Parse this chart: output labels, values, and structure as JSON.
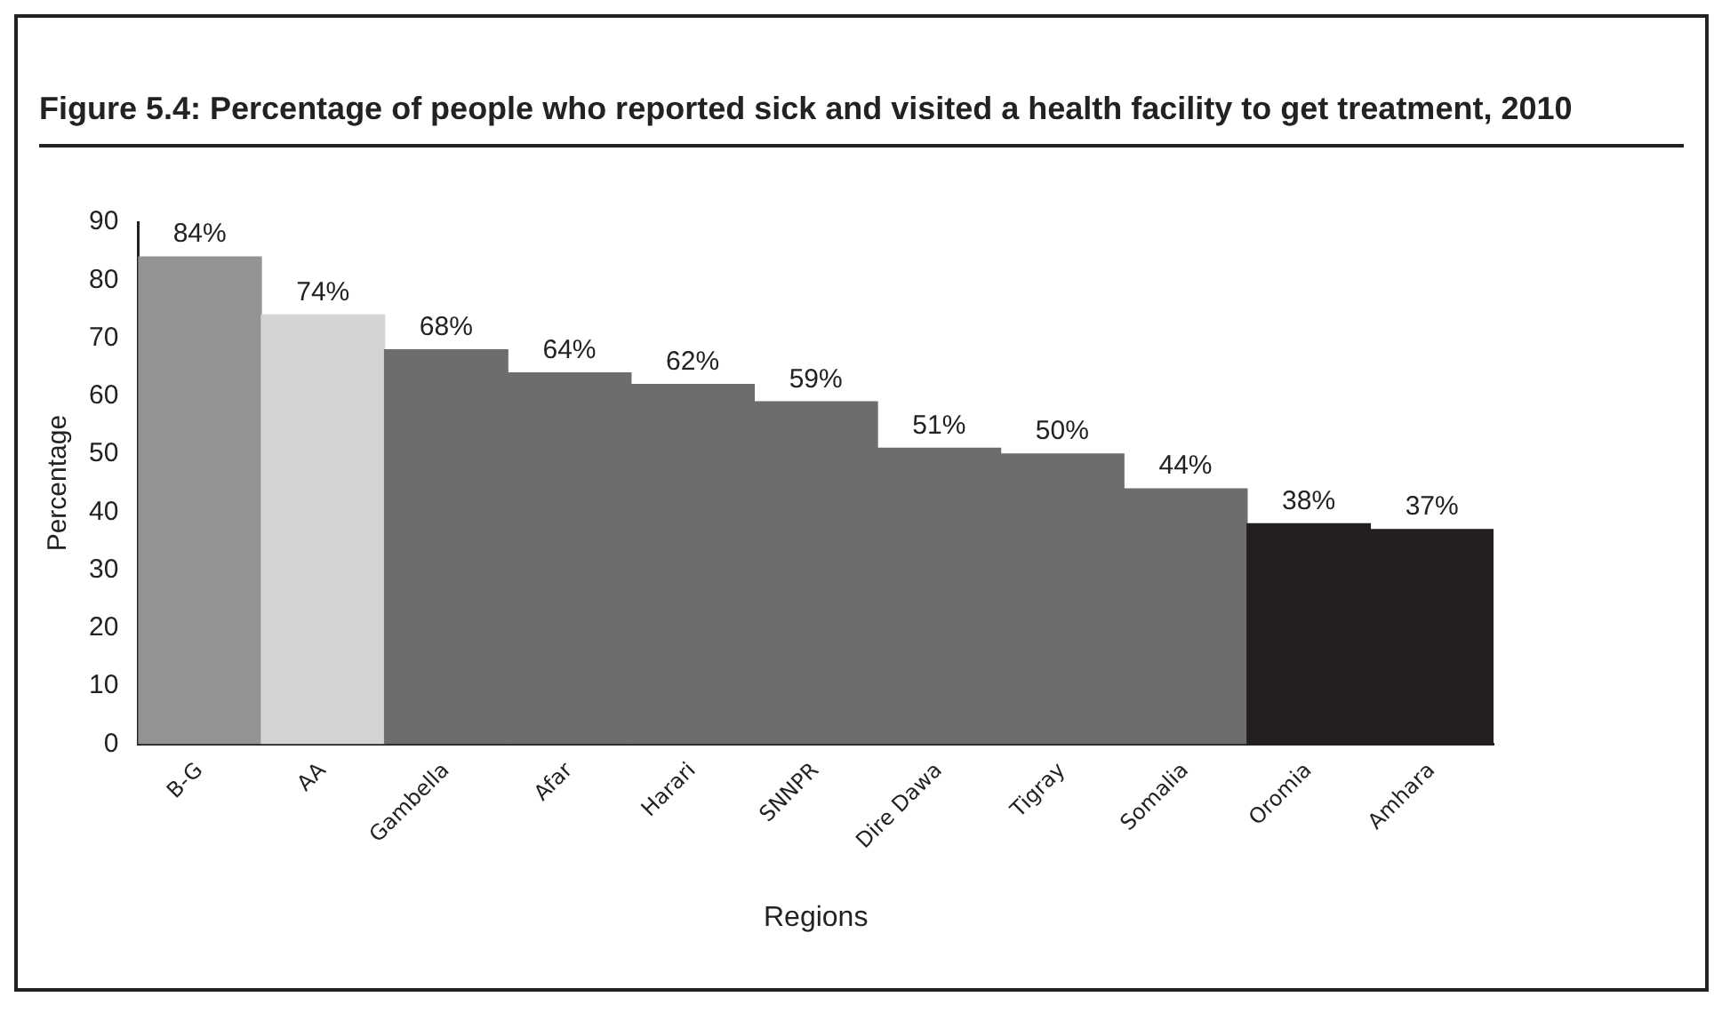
{
  "chart_data": {
    "type": "bar",
    "title": "Figure 5.4: Percentage of people who reported sick and visited a health facility to get treatment, 2010",
    "xlabel": "Regions",
    "ylabel": "Percentage",
    "categories": [
      "B-G",
      "AA",
      "Gambella",
      "Afar",
      "Harari",
      "SNNPR",
      "Dire Dawa",
      "Tigray",
      "Somalia",
      "Oromia",
      "Amhara"
    ],
    "values": [
      84,
      74,
      68,
      64,
      62,
      59,
      51,
      50,
      44,
      38,
      37
    ],
    "colors": [
      "#939393",
      "#d4d4d4",
      "#6d6d6f",
      "#6d6d6f",
      "#6d6d6f",
      "#6d6d6f",
      "#6d6d6f",
      "#6d6d6f",
      "#6d6d6f",
      "#231f20",
      "#231f20"
    ],
    "value_labels": [
      "84%",
      "74%",
      "68%",
      "64%",
      "62%",
      "59%",
      "51%",
      "50%",
      "44%",
      "38%",
      "37%"
    ],
    "ylim": [
      0,
      90
    ],
    "yticks": [
      0,
      10,
      20,
      30,
      40,
      50,
      60,
      70,
      80,
      90
    ],
    "grid": false,
    "legend": false
  }
}
